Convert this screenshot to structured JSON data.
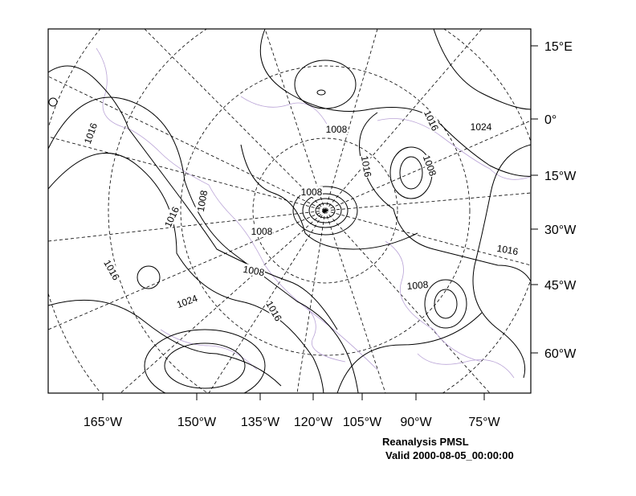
{
  "axes": {
    "right_labels": [
      "15°E",
      "0°",
      "15°W",
      "30°W",
      "45°W",
      "60°W"
    ],
    "bottom_labels": [
      "165°W",
      "150°W",
      "135°W",
      "120°W",
      "105°W",
      "90°W",
      "75°W"
    ]
  },
  "contour_labels": [
    "1016",
    "1008",
    "1016",
    "1024",
    "1016",
    "1008",
    "1008",
    "1008",
    "1016",
    "1008",
    "1016",
    "1016",
    "1008",
    "1008",
    "1024",
    "1016"
  ],
  "caption": {
    "title": "Reanalysis PMSL",
    "valid": "Valid 2000-08-05_00:00:00"
  }
}
